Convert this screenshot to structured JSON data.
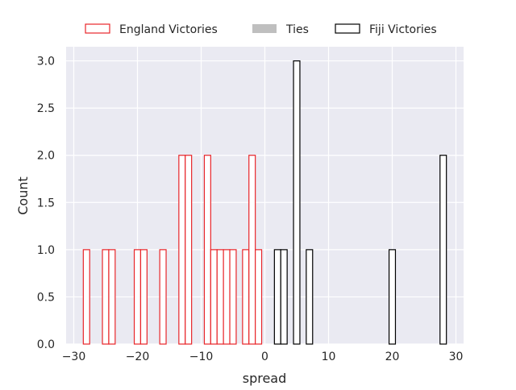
{
  "chart_data": {
    "type": "bar",
    "title": "",
    "xlabel": "spread",
    "ylabel": "Count",
    "xlim": [
      -31.2,
      31.2
    ],
    "ylim": [
      0,
      3.15
    ],
    "bin_width": 1,
    "xticks": [
      -30,
      -20,
      -10,
      0,
      10,
      20,
      30
    ],
    "xtick_labels": [
      "−30",
      "−20",
      "−10",
      "0",
      "10",
      "20",
      "30"
    ],
    "yticks": [
      0,
      0.5,
      1,
      1.5,
      2,
      2.5,
      3
    ],
    "ytick_labels": [
      "0.0",
      "0.5",
      "1.0",
      "1.5",
      "2.0",
      "2.5",
      "3.0"
    ],
    "grid": true,
    "legend_position": "top-center",
    "series": [
      {
        "name": "England Victories",
        "color": "#e8262a",
        "x": [
          -28,
          -25,
          -24,
          -20,
          -19,
          -16,
          -13,
          -12,
          -9,
          -8,
          -7,
          -6,
          -5,
          -3,
          -2,
          -1
        ],
        "values": [
          1,
          1,
          1,
          1,
          1,
          1,
          2,
          2,
          2,
          1,
          1,
          1,
          1,
          1,
          2,
          1
        ]
      },
      {
        "name": "Ties",
        "color": "#bfbfbf",
        "x": [],
        "values": []
      },
      {
        "name": "Fiji Victories",
        "color": "#000000",
        "x": [
          2,
          3,
          5,
          7,
          20,
          28
        ],
        "values": [
          1,
          1,
          3,
          1,
          1,
          2
        ]
      }
    ]
  }
}
